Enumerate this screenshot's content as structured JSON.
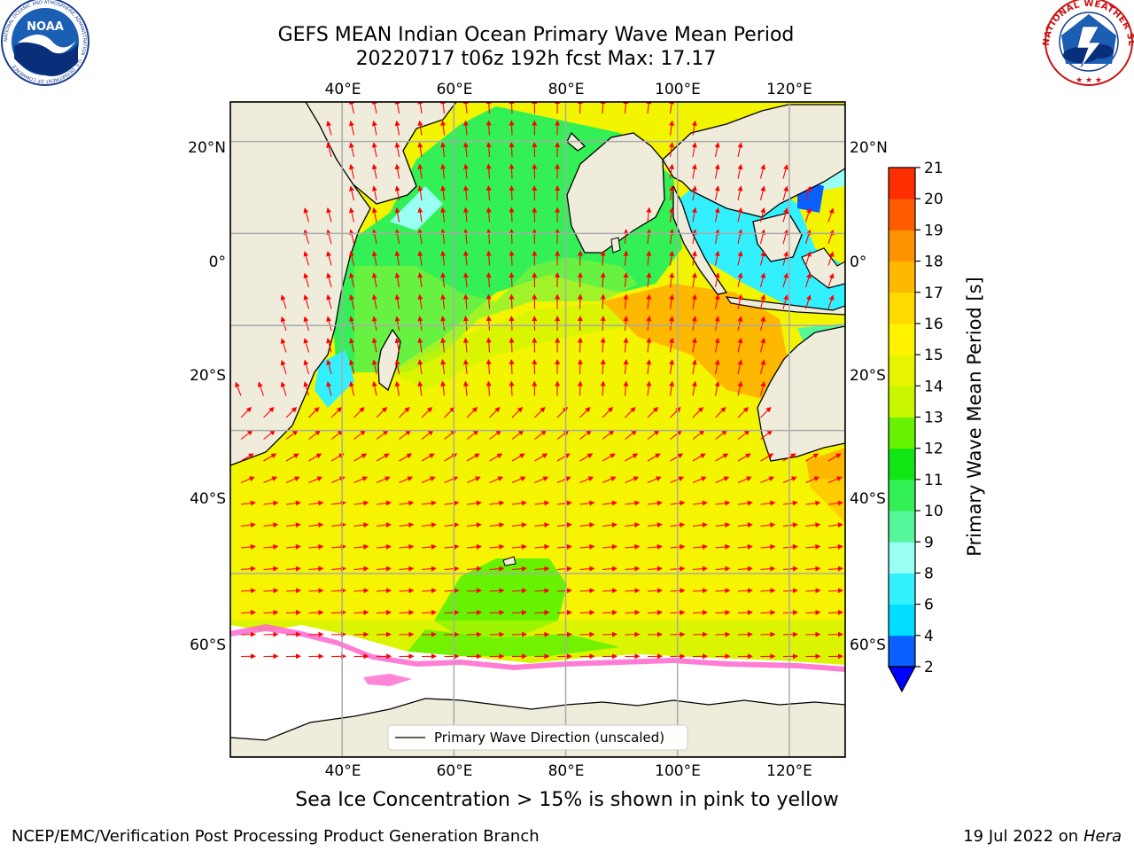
{
  "title": {
    "line1": "GEFS MEAN Indian Ocean Primary Wave Mean Period",
    "line2": "20220717 t06z 192h fcst   Max: 17.17"
  },
  "caption": "Sea Ice Concentration > 15% is shown in pink to yellow",
  "footer": {
    "left": "NCEP/EMC/Verification Post Processing Product Generation Branch",
    "date": "19 Jul 2022 on ",
    "host": "Hera"
  },
  "legend": {
    "line_label": "Primary Wave Direction (unscaled)"
  },
  "axes": {
    "lon_ticks": [
      "40°E",
      "60°E",
      "80°E",
      "100°E",
      "120°E"
    ],
    "lon_values": [
      40,
      60,
      80,
      100,
      120
    ],
    "lat_ticks_left": [
      "20°N",
      "0°",
      "20°S",
      "40°S",
      "60°S"
    ],
    "lat_ticks_right": [
      "20°N",
      "0°",
      "20°S",
      "40°S",
      "60°S"
    ],
    "lat_values": [
      20,
      0,
      -20,
      -40,
      -60
    ],
    "lon_range": [
      20,
      130
    ],
    "lat_range": [
      -75,
      28
    ],
    "grid": true
  },
  "colorbar": {
    "label": "Primary Wave Mean Period [s]",
    "tick_labels": [
      "2",
      "4",
      "6",
      "8",
      "9",
      "10",
      "11",
      "12",
      "13",
      "14",
      "15",
      "16",
      "17",
      "18",
      "19",
      "20",
      "21"
    ],
    "colors": [
      "#0a60ff",
      "#00ddff",
      "#33f0ff",
      "#99fff5",
      "#55f79a",
      "#33f056",
      "#10e613",
      "#66f200",
      "#c8f500",
      "#e6f400",
      "#fff300",
      "#ffda00",
      "#ffb800",
      "#ff9200",
      "#ff5c00",
      "#ff2e00"
    ],
    "extend_low_color": "#0000ff"
  },
  "logos": {
    "left": {
      "text": "NOAA",
      "ring": "NATIONAL OCEANIC AND ATMOSPHERIC ADMINISTRATION · U.S. DEPARTMENT OF COMMERCE"
    },
    "right": {
      "ring": "NATIONAL WEATHER SERVICE"
    }
  },
  "map_colors": {
    "land": "#efecdc",
    "ice_free": "#ffffff",
    "arrow": "#ff0000",
    "coast": "#000000"
  }
}
